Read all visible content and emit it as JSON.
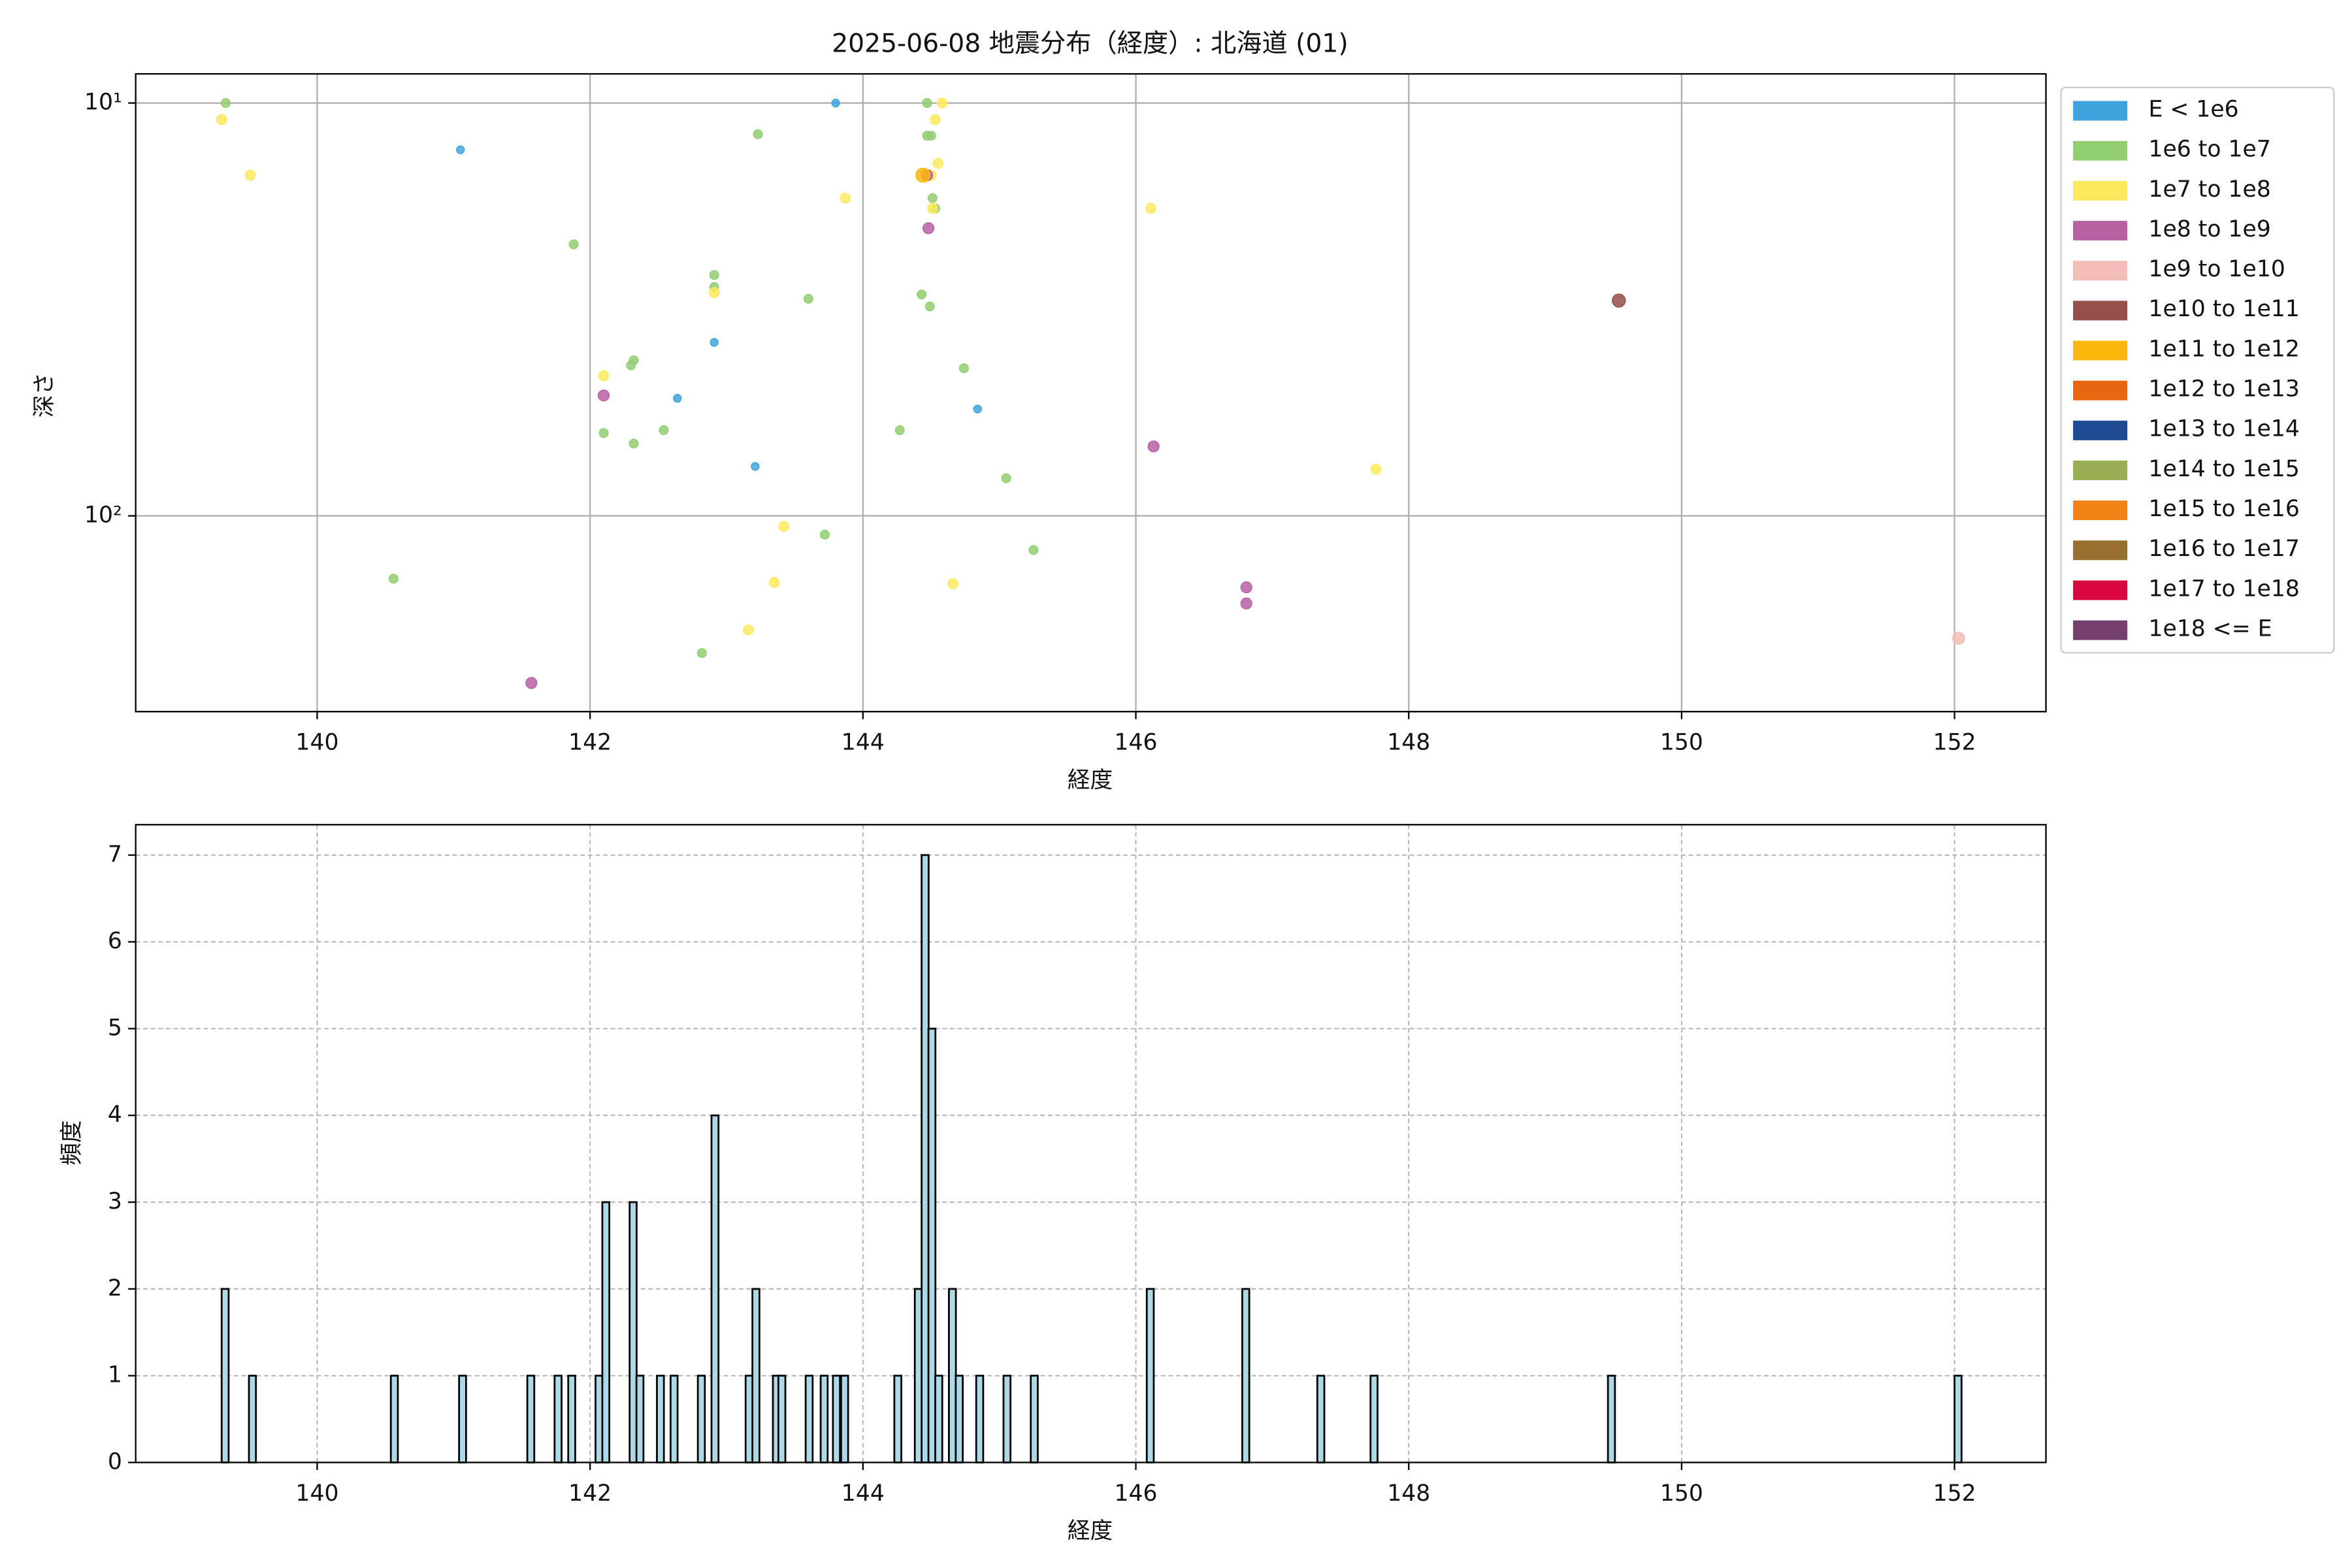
{
  "chart_data": [
    {
      "type": "scatter",
      "title": "2025-06-08 地震分布（経度）: 北海道 (01)",
      "x_label": "経度",
      "y_label": "深さ",
      "xlim": [
        138.67,
        152.67
      ],
      "xticks": [
        140,
        142,
        144,
        146,
        148,
        150,
        152
      ],
      "ylim": [
        8.5,
        298
      ],
      "yscale": "log",
      "y_inverted": true,
      "yticks": [
        {
          "value": 10,
          "label": "10¹"
        },
        {
          "value": 100,
          "label": "10²"
        }
      ],
      "grid": true,
      "legend": "outside-right",
      "series": [
        {
          "name": "E < 1e6",
          "color": "#3fa4dc",
          "x": [
            141.05,
            142.64,
            142.91,
            143.21,
            143.8,
            144.84
          ],
          "y": [
            12.98,
            51.9,
            38.0,
            75.9,
            10,
            55.1
          ]
        },
        {
          "name": "1e6 to 1e7",
          "color": "#93ce73",
          "x": [
            139.33,
            141.88,
            142.1,
            142.3,
            142.32,
            142.32,
            142.54,
            142.91,
            142.91,
            143.23,
            143.6,
            143.72,
            142.82,
            140.56,
            144.27,
            144.43,
            144.47,
            144.47,
            144.5,
            144.51,
            144.53,
            144.49,
            144.74,
            145.05,
            145.25
          ],
          "y": [
            10,
            22.0,
            63,
            43.2,
            42.0,
            66.8,
            62,
            26.1,
            27.9,
            11.9,
            29.8,
            111,
            215,
            142,
            62,
            29.1,
            10,
            12.0,
            12.0,
            17.0,
            18.0,
            31.1,
            43.9,
            81.1,
            121
          ]
        },
        {
          "name": "1e7 to 1e8",
          "color": "#fde95e",
          "x": [
            139.3,
            139.51,
            142.1,
            142.91,
            143.42,
            143.35,
            143.87,
            143.16,
            144.53,
            144.55,
            144.58,
            144.5,
            144.51,
            144.66,
            146.11,
            147.76
          ],
          "y": [
            10.97,
            14.96,
            45.8,
            28.8,
            106,
            145,
            17.0,
            189,
            10.97,
            14.0,
            10,
            14.96,
            18.0,
            146,
            18.0,
            77.1
          ]
        },
        {
          "name": "1e8 to 1e9",
          "color": "#b762a3",
          "x": [
            142.1,
            141.57,
            144.47,
            144.48,
            146.13,
            146.81,
            146.81
          ],
          "y": [
            51.1,
            254,
            14.96,
            20.1,
            67.9,
            149,
            163
          ]
        },
        {
          "name": "1e9 to 1e10",
          "color": "#f4bcb6",
          "x": [
            152.03
          ],
          "y": [
            198
          ]
        },
        {
          "name": "1e10 to 1e11",
          "color": "#944f4a",
          "x": [
            149.54
          ],
          "y": [
            30.1
          ]
        },
        {
          "name": "1e11 to 1e12",
          "color": "#fab80c",
          "x": [
            144.44
          ],
          "y": [
            14.96
          ]
        },
        {
          "name": "1e12 to 1e13",
          "color": "#e8660f",
          "x": [],
          "y": []
        },
        {
          "name": "1e13 to 1e14",
          "color": "#1e4a94",
          "x": [],
          "y": []
        },
        {
          "name": "1e14 to 1e15",
          "color": "#9aaf55",
          "x": [],
          "y": []
        },
        {
          "name": "1e15 to 1e16",
          "color": "#f28216",
          "x": [],
          "y": []
        },
        {
          "name": "1e16 to 1e17",
          "color": "#986f2f",
          "x": [],
          "y": []
        },
        {
          "name": "1e17 to 1e18",
          "color": "#d9083e",
          "x": [],
          "y": []
        },
        {
          "name": "1e18 <= E",
          "color": "#733f6e",
          "x": [],
          "y": []
        }
      ]
    },
    {
      "type": "histogram",
      "x_label": "経度",
      "y_label": "頻度",
      "xlim": [
        138.67,
        152.67
      ],
      "xticks": [
        140,
        142,
        144,
        146,
        148,
        150,
        152
      ],
      "ylim": [
        0,
        7.35
      ],
      "yticks": [
        0,
        1,
        2,
        3,
        4,
        5,
        6,
        7
      ],
      "grid": true,
      "color": "#add8e6",
      "bin_width": 0.0513,
      "x": [
        139.3,
        139.5,
        140.54,
        141.04,
        141.54,
        141.74,
        141.84,
        142.04,
        142.09,
        142.29,
        142.34,
        142.49,
        142.59,
        142.79,
        142.89,
        143.14,
        143.19,
        143.34,
        143.38,
        143.58,
        143.69,
        143.78,
        143.84,
        144.23,
        144.38,
        144.43,
        144.48,
        144.53,
        144.63,
        144.68,
        144.83,
        145.03,
        145.23,
        146.08,
        146.78,
        147.33,
        147.72,
        149.46,
        152.0
      ],
      "values": [
        2,
        1,
        1,
        1,
        1,
        1,
        1,
        1,
        3,
        3,
        1,
        1,
        1,
        1,
        4,
        1,
        2,
        1,
        1,
        1,
        1,
        1,
        1,
        1,
        2,
        7,
        5,
        1,
        2,
        1,
        1,
        1,
        1,
        2,
        2,
        1,
        1,
        1,
        1
      ]
    }
  ]
}
